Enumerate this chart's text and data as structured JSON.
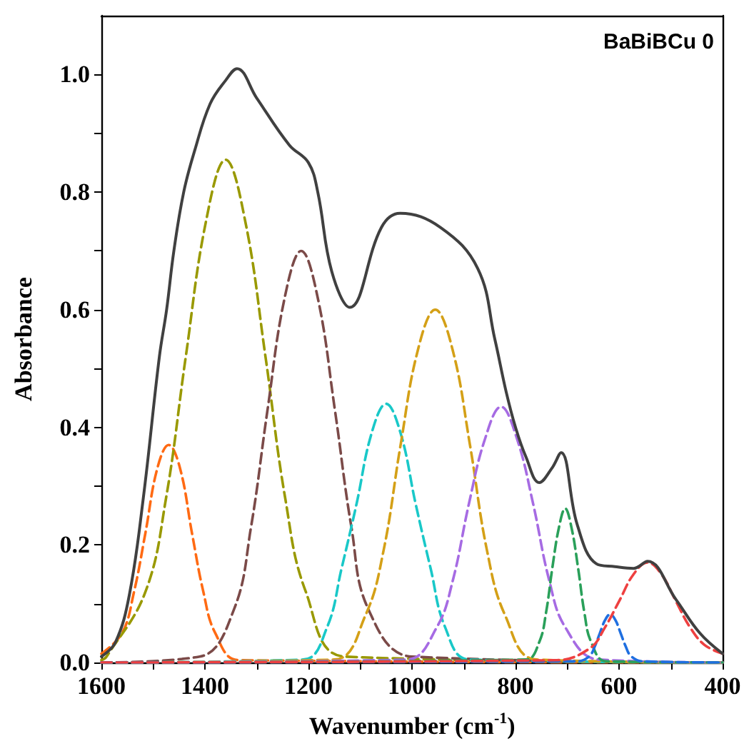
{
  "chart_data": {
    "type": "line",
    "xlabel": "Wavenumber (cm$^{-1}$)",
    "ylabel": "Absorbance",
    "annotations": [
      "BaBiBCu 0"
    ],
    "xlim": [
      1600,
      400
    ],
    "ylim": [
      0,
      1.1
    ],
    "xticks": [
      1600,
      {
        "value": 1500,
        "label": null
      },
      1400,
      {
        "value": 1300,
        "label": null
      },
      1200,
      {
        "value": 1100,
        "label": null
      },
      1000,
      {
        "value": 900,
        "label": null
      },
      800,
      {
        "value": 700,
        "label": null
      },
      600,
      {
        "value": 500,
        "label": null
      },
      400
    ],
    "yticks": [
      {
        "value": 0,
        "label": "0.0"
      },
      {
        "value": 0.1,
        "label": null
      },
      {
        "value": 0.2,
        "label": "0.2"
      },
      {
        "value": 0.3,
        "label": null
      },
      {
        "value": 0.4,
        "label": "0.4"
      },
      {
        "value": 0.5,
        "label": null
      },
      {
        "value": 0.6,
        "label": "0.6"
      },
      {
        "value": 0.7,
        "label": null
      },
      {
        "value": 0.8,
        "label": "0.8"
      },
      {
        "value": 0.9,
        "label": null
      },
      {
        "value": 1.0,
        "label": "1.0"
      }
    ],
    "grid": false,
    "marker": "none",
    "series": [
      {
        "color": "#404040",
        "line_style": "solid",
        "x": [
          1600,
          1573,
          1546,
          1519,
          1488,
          1474,
          1460,
          1441,
          1420,
          1390,
          1360,
          1338,
          1300,
          1237,
          1200,
          1182,
          1155,
          1120,
          1059,
          1023,
          945,
          873,
          840,
          818,
          800,
          780,
          754,
          730,
          712,
          681,
          644,
          608,
          572,
          545,
          490,
          444,
          400
        ],
        "values": [
          0.01,
          0.034,
          0.115,
          0.28,
          0.52,
          0.6,
          0.7,
          0.8,
          0.87,
          0.95,
          0.99,
          1.01,
          0.96,
          0.88,
          0.85,
          0.8,
          0.665,
          0.604,
          0.74,
          0.764,
          0.74,
          0.67,
          0.55,
          0.46,
          0.4,
          0.35,
          0.306,
          0.33,
          0.357,
          0.235,
          0.168,
          0.163,
          0.16,
          0.172,
          0.107,
          0.05,
          0.015
        ]
      },
      {
        "color": "#ff6a13",
        "line_style": "dashed",
        "x": [
          1600,
          1560,
          1537,
          1515,
          1492,
          1470,
          1448,
          1425,
          1403,
          1380,
          1335,
          400
        ],
        "values": [
          0.015,
          0.05,
          0.12,
          0.22,
          0.33,
          0.37,
          0.33,
          0.22,
          0.12,
          0.05,
          0.004,
          0
        ]
      },
      {
        "color": "#999900",
        "line_style": "dashed",
        "x": [
          1600,
          1590,
          1515,
          1475,
          1437,
          1398,
          1360,
          1322,
          1283,
          1245,
          1205,
          1130,
          400
        ],
        "values": [
          0.004,
          0.01,
          0.12,
          0.28,
          0.52,
          0.75,
          0.855,
          0.75,
          0.52,
          0.28,
          0.12,
          0.01,
          0
        ]
      },
      {
        "color": "#7b4a48",
        "line_style": "dashed",
        "x": [
          1600,
          1410,
          1344,
          1311,
          1279,
          1246,
          1214,
          1182,
          1149,
          1117,
          1084,
          1000,
          400
        ],
        "values": [
          0,
          0.01,
          0.09,
          0.23,
          0.43,
          0.62,
          0.7,
          0.62,
          0.43,
          0.23,
          0.09,
          0.01,
          0
        ]
      },
      {
        "color": "#19c8c8",
        "line_style": "dashed",
        "x": [
          1600,
          1210,
          1164,
          1136,
          1107,
          1078,
          1050,
          1022,
          993,
          964,
          936,
          890,
          400
        ],
        "values": [
          0,
          0.005,
          0.06,
          0.16,
          0.27,
          0.39,
          0.44,
          0.39,
          0.27,
          0.16,
          0.06,
          0.005,
          0
        ]
      },
      {
        "color": "#d4a017",
        "line_style": "dashed",
        "x": [
          1600,
          1150,
          1090,
          1055,
          1022,
          989,
          955,
          921,
          888,
          855,
          820,
          760,
          400
        ],
        "values": [
          0,
          0.005,
          0.08,
          0.19,
          0.37,
          0.53,
          0.6,
          0.53,
          0.37,
          0.19,
          0.08,
          0.005,
          0
        ]
      },
      {
        "color": "#a66be3",
        "line_style": "dashed",
        "x": [
          1600,
          1010,
          952,
          921,
          890,
          859,
          828,
          797,
          766,
          735,
          704,
          640,
          400
        ],
        "values": [
          0,
          0.005,
          0.06,
          0.14,
          0.27,
          0.38,
          0.435,
          0.38,
          0.27,
          0.14,
          0.06,
          0.005,
          0
        ]
      },
      {
        "color": "#2aa05a",
        "line_style": "dashed",
        "x": [
          1600,
          780,
          754,
          741,
          729,
          716,
          704,
          692,
          679,
          667,
          654,
          625,
          400
        ],
        "values": [
          0,
          0.005,
          0.035,
          0.085,
          0.16,
          0.23,
          0.262,
          0.23,
          0.16,
          0.085,
          0.035,
          0.002,
          0
        ]
      },
      {
        "color": "#1f6fe0",
        "line_style": "dashed",
        "x": [
          1600,
          680,
          657,
          647,
          637,
          627,
          617,
          607,
          597,
          587,
          577,
          555,
          400
        ],
        "values": [
          0,
          0.002,
          0.011,
          0.027,
          0.05,
          0.072,
          0.082,
          0.072,
          0.05,
          0.027,
          0.011,
          0.002,
          0
        ]
      },
      {
        "color": "#ee4040",
        "line_style": "dashed",
        "x": [
          1600,
          720,
          655,
          627,
          600,
          572,
          545,
          518,
          490,
          463,
          435,
          400
        ],
        "values": [
          0,
          0.004,
          0.025,
          0.06,
          0.104,
          0.15,
          0.17,
          0.15,
          0.104,
          0.06,
          0.03,
          0.015
        ]
      }
    ]
  }
}
